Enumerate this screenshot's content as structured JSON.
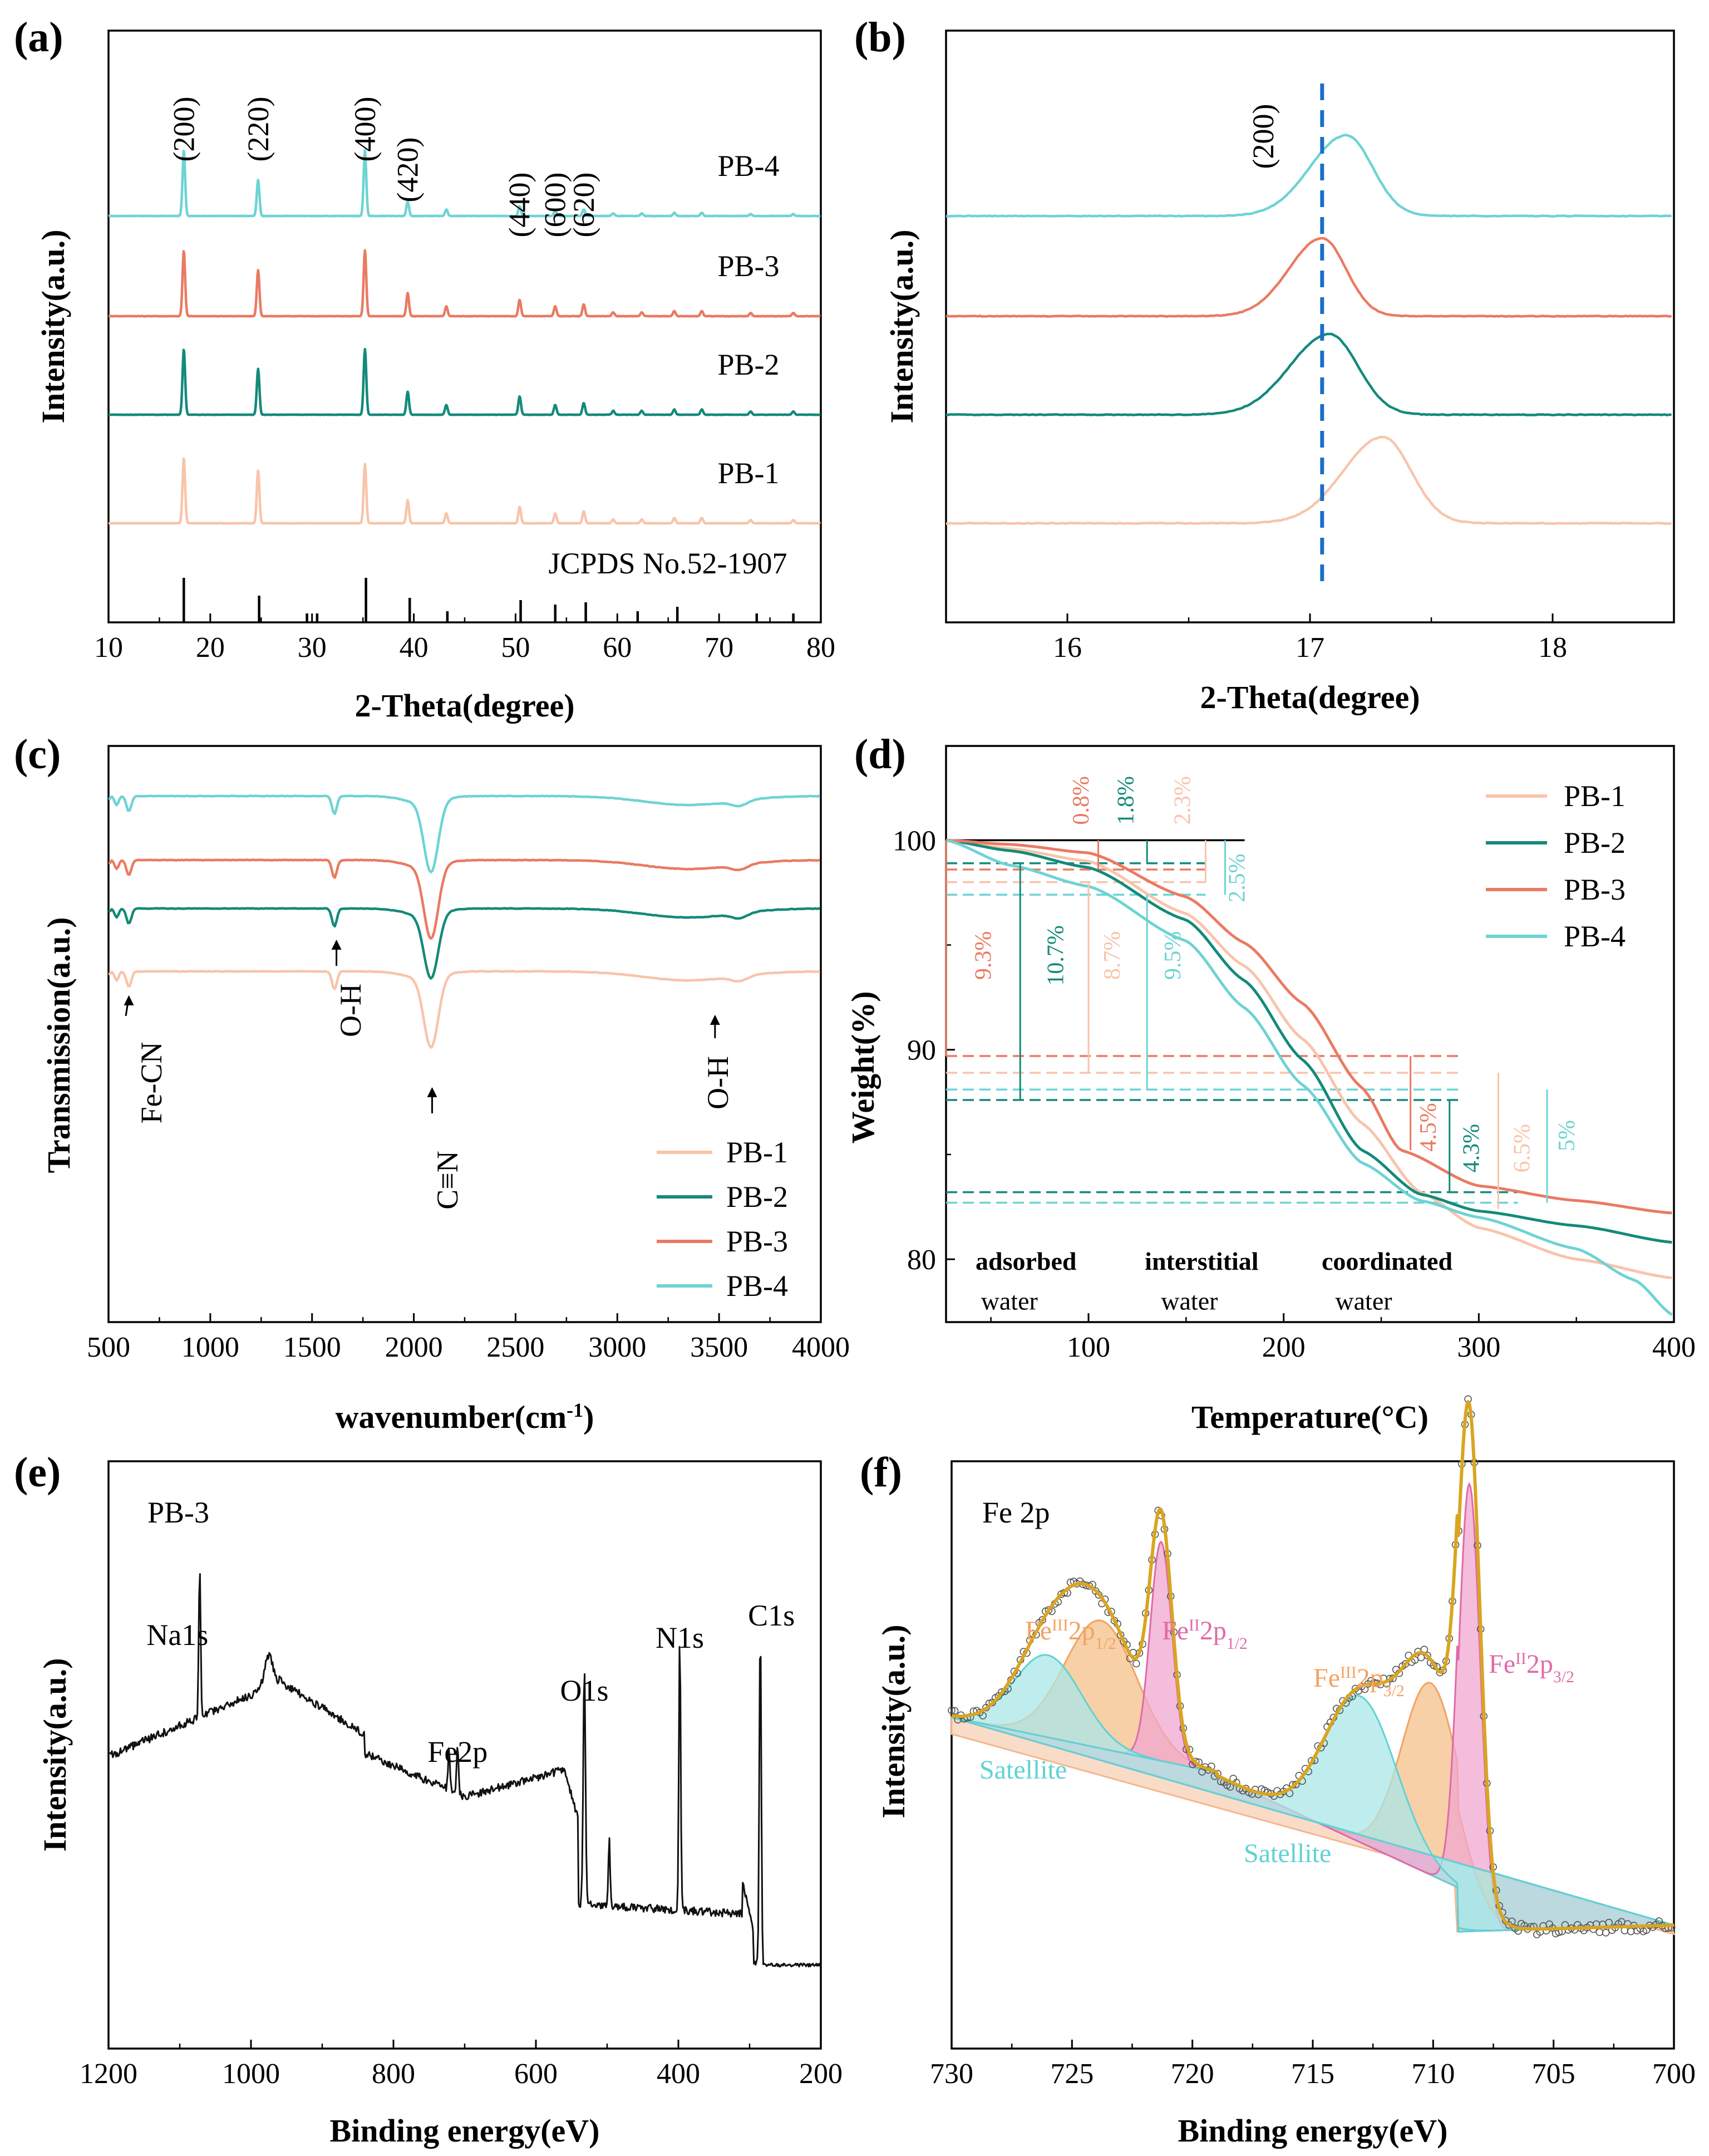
{
  "colors": {
    "pb1": "#f8c4aa",
    "pb2": "#138a7a",
    "pb3": "#ea7a62",
    "pb4": "#6ed3d4",
    "blue": "#1a6fc9",
    "black": "#111111",
    "fe3": "#f4a261",
    "fe2": "#e06aa9",
    "sat": "#5fd2d4",
    "envelope": "#d9a520"
  },
  "chart_data": [
    {
      "id": "a",
      "type": "line",
      "panel_label": "(a)",
      "xlabel": "2-Theta(degree)",
      "ylabel": "Intensity(a.u.)",
      "xlim": [
        10,
        80
      ],
      "xticks": [
        10,
        20,
        30,
        40,
        50,
        60,
        70,
        80
      ],
      "peaks": [
        17.4,
        24.7,
        35.2,
        39.4,
        43.2,
        50.4,
        53.9,
        56.7,
        59.6,
        62.4,
        65.6,
        68.3,
        73.1,
        77.3
      ],
      "reference_label": "JCPDS No.52-1907",
      "reference_peaks": [
        17.4,
        24.8,
        29.5,
        30.5,
        35.3,
        39.6,
        43.3,
        50.5,
        53.9,
        56.9,
        62.0,
        65.9,
        73.7,
        77.3
      ],
      "reference_heights": [
        1.0,
        0.6,
        0.2,
        0.2,
        1.0,
        0.55,
        0.25,
        0.5,
        0.4,
        0.45,
        0.25,
        0.35,
        0.2,
        0.2
      ],
      "hkl": [
        "(200)",
        "(220)",
        "(400)",
        "(420)",
        "(440)",
        "(600)",
        "(620)"
      ],
      "series": [
        {
          "name": "PB-4",
          "color": "#6ed3d4",
          "peak_heights": [
            1.0,
            0.55,
            1.0,
            0.22,
            0.1,
            0.15,
            0.08,
            0.1,
            0.04,
            0.04,
            0.05,
            0.05,
            0.03,
            0.03
          ]
        },
        {
          "name": "PB-3",
          "color": "#ea7a62",
          "peak_heights": [
            1.0,
            0.7,
            1.0,
            0.35,
            0.15,
            0.25,
            0.15,
            0.18,
            0.06,
            0.06,
            0.08,
            0.08,
            0.05,
            0.05
          ]
        },
        {
          "name": "PB-2",
          "color": "#138a7a",
          "peak_heights": [
            1.0,
            0.7,
            1.0,
            0.35,
            0.15,
            0.28,
            0.15,
            0.18,
            0.06,
            0.06,
            0.08,
            0.08,
            0.05,
            0.05
          ]
        },
        {
          "name": "PB-1",
          "color": "#f8c4aa",
          "peak_heights": [
            1.0,
            0.8,
            0.9,
            0.35,
            0.15,
            0.25,
            0.15,
            0.18,
            0.06,
            0.06,
            0.08,
            0.08,
            0.05,
            0.05
          ]
        }
      ]
    },
    {
      "id": "b",
      "type": "line",
      "panel_label": "(b)",
      "xlabel": "2-Theta(degree)",
      "ylabel": "Intensity(a.u.)",
      "xlim": [
        15.5,
        18.5
      ],
      "xticks": [
        16,
        17,
        18
      ],
      "reference_line": 17.05,
      "hkl": "(200)",
      "series": [
        {
          "name": "PB-4",
          "color": "#6ed3d4",
          "center": 17.15,
          "width": 0.12
        },
        {
          "name": "PB-3",
          "color": "#ea7a62",
          "center": 17.05,
          "width": 0.11
        },
        {
          "name": "PB-2",
          "color": "#138a7a",
          "center": 17.08,
          "width": 0.13
        },
        {
          "name": "PB-1",
          "color": "#f8c4aa",
          "center": 17.3,
          "width": 0.13
        }
      ]
    },
    {
      "id": "c",
      "type": "line",
      "panel_label": "(c)",
      "xlabel": "wavenumber(cm",
      "xlabel_sup": "-1",
      "xlabel_end": ")",
      "ylabel": "Transmission(a.u.)",
      "xlim": [
        500,
        4000
      ],
      "xticks": [
        500,
        1000,
        1500,
        2000,
        2500,
        3000,
        3500,
        4000
      ],
      "annotations": [
        "Fe-CN",
        "O-H",
        "C≡N",
        "O-H"
      ],
      "series": [
        {
          "name": "PB-4",
          "color": "#6ed3d4",
          "dip_2080": 0.55
        },
        {
          "name": "PB-3",
          "color": "#ea7a62",
          "dip_2080": 0.57
        },
        {
          "name": "PB-2",
          "color": "#138a7a",
          "dip_2080": 0.5
        },
        {
          "name": "PB-1",
          "color": "#f8c4aa",
          "dip_2080": 0.55
        }
      ],
      "legend": [
        "PB-1",
        "PB-2",
        "PB-3",
        "PB-4"
      ]
    },
    {
      "id": "d",
      "type": "line",
      "panel_label": "(d)",
      "xlabel": "Temperature(°C)",
      "ylabel": "Weight(%)",
      "xlim": [
        27,
        400
      ],
      "ylim": [
        77,
        104.5
      ],
      "xticks": [
        100,
        200,
        300,
        400
      ],
      "yticks": [
        80,
        90,
        100
      ],
      "series": [
        {
          "name": "PB-1",
          "color": "#f8c4aa",
          "points": [
            [
              27,
              100
            ],
            [
              60,
              99.6
            ],
            [
              100,
              99.0
            ],
            [
              150,
              96.5
            ],
            [
              180,
              94.0
            ],
            [
              210,
              90.5
            ],
            [
              240,
              86.5
            ],
            [
              270,
              83.2
            ],
            [
              300,
              81.5
            ],
            [
              350,
              80.0
            ],
            [
              400,
              79.1
            ]
          ]
        },
        {
          "name": "PB-2",
          "color": "#138a7a",
          "points": [
            [
              27,
              100
            ],
            [
              60,
              99.5
            ],
            [
              100,
              98.7
            ],
            [
              150,
              96.2
            ],
            [
              180,
              93.3
            ],
            [
              210,
              89.5
            ],
            [
              240,
              85.2
            ],
            [
              270,
              83.1
            ],
            [
              300,
              82.3
            ],
            [
              350,
              81.6
            ],
            [
              400,
              80.8
            ]
          ]
        },
        {
          "name": "PB-3",
          "color": "#ea7a62",
          "points": [
            [
              27,
              100
            ],
            [
              60,
              99.8
            ],
            [
              100,
              99.4
            ],
            [
              150,
              97.3
            ],
            [
              180,
              95.1
            ],
            [
              210,
              92.2
            ],
            [
              240,
              88.2
            ],
            [
              260,
              85.2
            ],
            [
              300,
              83.5
            ],
            [
              350,
              82.8
            ],
            [
              400,
              82.2
            ]
          ]
        },
        {
          "name": "PB-4",
          "color": "#6ed3d4",
          "points": [
            [
              27,
              100
            ],
            [
              60,
              98.8
            ],
            [
              100,
              97.8
            ],
            [
              150,
              95.2
            ],
            [
              180,
              92.0
            ],
            [
              210,
              88.3
            ],
            [
              240,
              84.6
            ],
            [
              270,
              82.8
            ],
            [
              300,
              82.0
            ],
            [
              350,
              80.5
            ],
            [
              380,
              79.0
            ],
            [
              400,
              77.3
            ]
          ]
        }
      ],
      "stage_labels": [
        [
          "adsorbed",
          "water"
        ],
        [
          "interstitial",
          "water"
        ],
        [
          "coordinated",
          "water"
        ]
      ],
      "loss_labels": {
        "stage1": [
          "0.8%",
          "1.8%",
          "2.3%",
          "2.5%"
        ],
        "stage2": [
          "9.3%",
          "10.7%",
          "8.7%",
          "9.5%"
        ],
        "stage3": [
          "4.5%",
          "4.3%",
          "6.5%",
          "5%"
        ]
      },
      "legend": [
        "PB-1",
        "PB-2",
        "PB-3",
        "PB-4"
      ]
    },
    {
      "id": "e",
      "type": "line",
      "panel_label": "(e)",
      "xlabel": "Binding energy(eV)",
      "ylabel": "Intensity(a.u.)",
      "xlim": [
        1200,
        200
      ],
      "xticks": [
        1200,
        1000,
        800,
        600,
        400,
        200
      ],
      "sample": "PB-3",
      "peak_labels": [
        {
          "text": "Na1s",
          "x": 1072
        },
        {
          "text": "Fe2p",
          "x": 710
        },
        {
          "text": "O1s",
          "x": 532
        },
        {
          "text": "N1s",
          "x": 398
        },
        {
          "text": "C1s",
          "x": 285
        }
      ]
    },
    {
      "id": "f",
      "type": "line",
      "panel_label": "(f)",
      "xlabel": "Binding energy(eV)",
      "ylabel": "Intensity(a.u.)",
      "xlim": [
        730,
        700
      ],
      "xticks": [
        730,
        725,
        720,
        715,
        710,
        705,
        700
      ],
      "title": "Fe 2p",
      "components": [
        {
          "name": "Feᴵᴵᴵ 2p1/2",
          "center": 723.8,
          "sigma": 1.5,
          "amp": 0.28
        },
        {
          "name": "Feᴵᴵ 2p1/2",
          "center": 721.3,
          "sigma": 0.45,
          "amp": 0.48
        },
        {
          "name": "Satellite",
          "center": 726.0,
          "sigma": 1.4,
          "amp": 0.18
        },
        {
          "name": "Feᴵᴵᴵ 2p3/2",
          "center": 710.1,
          "sigma": 1.2,
          "amp": 0.42
        },
        {
          "name": "Feᴵᴵ 2p3/2",
          "center": 708.5,
          "sigma": 0.45,
          "amp": 0.98
        },
        {
          "name": "Satellite",
          "center": 713.0,
          "sigma": 1.5,
          "amp": 0.32
        }
      ],
      "labels": {
        "fe3_half_1": {
          "main": "Fe",
          "sup": "III",
          "mid": "2p",
          "sub": "1/2"
        },
        "fe2_half_1": {
          "main": "Fe",
          "sup": "II",
          "mid": "2p",
          "sub": "1/2"
        },
        "fe3_half_3": {
          "main": "Fe",
          "sup": "III",
          "mid": "2p",
          "sub": "3/2"
        },
        "fe2_half_3": {
          "main": "Fe",
          "sup": "II",
          "mid": "2p",
          "sub": "3/2"
        },
        "satellite": "Satellite"
      }
    }
  ]
}
